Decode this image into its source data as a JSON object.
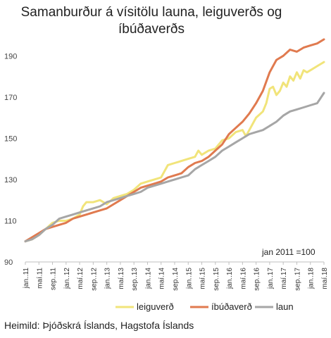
{
  "chart_data": {
    "type": "line",
    "title_lines": [
      "Samanburður á vísitölu launa, leiguverðs og",
      "íbúðaverðs"
    ],
    "annotation": "jan 2011 =100",
    "ylim": [
      90,
      200
    ],
    "yticks": [
      90,
      110,
      130,
      150,
      170,
      190
    ],
    "xlim": [
      0,
      88
    ],
    "xtick_positions": [
      0,
      4,
      8,
      12,
      16,
      20,
      24,
      28,
      32,
      36,
      40,
      44,
      48,
      52,
      56,
      60,
      64,
      68,
      72,
      76,
      80,
      84,
      88
    ],
    "xtick_labels": [
      "jan..11",
      "maí.11",
      "sep..11",
      "jan..12",
      "maí.12",
      "sep..12",
      "jan..13",
      "maí.13",
      "sep..13",
      "jan..14",
      "maí.14",
      "sep..14",
      "jan..15",
      "maí.15",
      "sep..15",
      "jan..16",
      "maí.16",
      "sep..16",
      "jan..17",
      "maí.17",
      "sep..17",
      "jan..18",
      "maí.18"
    ],
    "grid": false,
    "legend_position": "bottom",
    "series": [
      {
        "name": "leiguverð",
        "color": "#f1e47a",
        "points": [
          [
            0,
            100
          ],
          [
            2,
            101
          ],
          [
            4,
            103
          ],
          [
            6,
            106
          ],
          [
            8,
            109
          ],
          [
            10,
            110
          ],
          [
            12,
            110
          ],
          [
            14,
            111
          ],
          [
            16,
            113
          ],
          [
            17,
            117
          ],
          [
            18,
            119
          ],
          [
            20,
            119
          ],
          [
            22,
            120
          ],
          [
            24,
            118
          ],
          [
            26,
            121
          ],
          [
            28,
            122
          ],
          [
            30,
            123
          ],
          [
            32,
            125
          ],
          [
            34,
            128
          ],
          [
            36,
            129
          ],
          [
            38,
            130
          ],
          [
            40,
            131
          ],
          [
            42,
            137
          ],
          [
            44,
            138
          ],
          [
            46,
            139
          ],
          [
            48,
            140
          ],
          [
            50,
            141
          ],
          [
            51,
            144
          ],
          [
            52,
            142
          ],
          [
            54,
            144
          ],
          [
            56,
            145
          ],
          [
            58,
            149
          ],
          [
            60,
            150
          ],
          [
            62,
            153
          ],
          [
            64,
            154
          ],
          [
            65,
            151
          ],
          [
            66,
            154
          ],
          [
            68,
            160
          ],
          [
            70,
            163
          ],
          [
            71,
            167
          ],
          [
            72,
            174
          ],
          [
            73,
            175
          ],
          [
            74,
            171
          ],
          [
            75,
            173
          ],
          [
            76,
            177
          ],
          [
            77,
            175
          ],
          [
            78,
            180
          ],
          [
            79,
            178
          ],
          [
            80,
            182
          ],
          [
            81,
            179
          ],
          [
            82,
            183
          ],
          [
            83,
            182
          ],
          [
            84,
            183
          ],
          [
            86,
            185
          ],
          [
            88,
            187
          ]
        ]
      },
      {
        "name": "íbúðaverð",
        "color": "#e07a4f",
        "points": [
          [
            0,
            100
          ],
          [
            2,
            102
          ],
          [
            4,
            104
          ],
          [
            6,
            106
          ],
          [
            8,
            107
          ],
          [
            10,
            108
          ],
          [
            12,
            109
          ],
          [
            14,
            111
          ],
          [
            16,
            112
          ],
          [
            18,
            113
          ],
          [
            20,
            114
          ],
          [
            22,
            115
          ],
          [
            24,
            116
          ],
          [
            26,
            118
          ],
          [
            28,
            120
          ],
          [
            30,
            122
          ],
          [
            32,
            124
          ],
          [
            34,
            126
          ],
          [
            36,
            127
          ],
          [
            38,
            128
          ],
          [
            40,
            129
          ],
          [
            42,
            131
          ],
          [
            44,
            132
          ],
          [
            46,
            133
          ],
          [
            48,
            136
          ],
          [
            50,
            138
          ],
          [
            52,
            139
          ],
          [
            54,
            141
          ],
          [
            56,
            144
          ],
          [
            58,
            147
          ],
          [
            60,
            152
          ],
          [
            62,
            155
          ],
          [
            64,
            158
          ],
          [
            66,
            162
          ],
          [
            68,
            167
          ],
          [
            70,
            173
          ],
          [
            72,
            182
          ],
          [
            74,
            188
          ],
          [
            76,
            190
          ],
          [
            78,
            193
          ],
          [
            80,
            192
          ],
          [
            82,
            194
          ],
          [
            84,
            195
          ],
          [
            86,
            196
          ],
          [
            88,
            198
          ]
        ]
      },
      {
        "name": "laun",
        "color": "#a6a6a6",
        "points": [
          [
            0,
            100
          ],
          [
            2,
            101
          ],
          [
            4,
            103
          ],
          [
            6,
            106
          ],
          [
            8,
            108
          ],
          [
            10,
            111
          ],
          [
            12,
            112
          ],
          [
            14,
            113
          ],
          [
            16,
            114
          ],
          [
            18,
            115
          ],
          [
            20,
            116
          ],
          [
            22,
            117
          ],
          [
            24,
            119
          ],
          [
            26,
            120
          ],
          [
            28,
            121
          ],
          [
            30,
            122
          ],
          [
            32,
            123
          ],
          [
            34,
            124
          ],
          [
            36,
            126
          ],
          [
            38,
            127
          ],
          [
            40,
            128
          ],
          [
            42,
            129
          ],
          [
            44,
            130
          ],
          [
            46,
            131
          ],
          [
            48,
            132
          ],
          [
            50,
            135
          ],
          [
            52,
            137
          ],
          [
            54,
            139
          ],
          [
            56,
            141
          ],
          [
            58,
            144
          ],
          [
            60,
            146
          ],
          [
            62,
            148
          ],
          [
            64,
            150
          ],
          [
            66,
            152
          ],
          [
            68,
            153
          ],
          [
            70,
            154
          ],
          [
            72,
            156
          ],
          [
            74,
            158
          ],
          [
            76,
            161
          ],
          [
            78,
            163
          ],
          [
            80,
            164
          ],
          [
            82,
            165
          ],
          [
            84,
            166
          ],
          [
            86,
            167
          ],
          [
            88,
            172
          ]
        ]
      }
    ]
  },
  "footer": {
    "source": "Heimild: Þjóðskrá Íslands, Hagstofa Íslands"
  }
}
